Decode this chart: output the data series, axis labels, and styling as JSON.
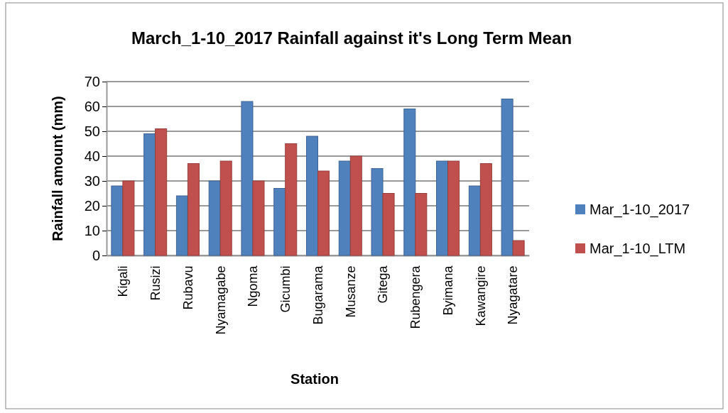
{
  "chart_data": {
    "type": "bar",
    "title": "March_1-10_2017 Rainfall against it's Long Term Mean",
    "xlabel": "Station",
    "ylabel": "Rainfall amount (mm)",
    "categories": [
      "Kigali",
      "Rusizi",
      "Rubavu",
      "Nyamagabe",
      "Ngoma",
      "Gicumbi",
      "Bugarama",
      "Musanze",
      "Gitega",
      "Rubengera",
      "Byimana",
      "Kawangire",
      "Nyagatare"
    ],
    "series": [
      {
        "name": "Mar_1-10_2017",
        "color": "#4f81bd",
        "values": [
          28,
          49,
          24,
          30,
          62,
          27,
          48,
          38,
          35,
          59,
          38,
          28,
          63
        ]
      },
      {
        "name": "Mar_1-10_LTM",
        "color": "#c0504d",
        "values": [
          30,
          51,
          37,
          38,
          30,
          45,
          34,
          40,
          25,
          25,
          38,
          37,
          6
        ]
      }
    ],
    "ylim": [
      0,
      70
    ],
    "yticks": [
      0,
      10,
      20,
      30,
      40,
      50,
      60,
      70
    ],
    "grid": "y",
    "legend": "right"
  }
}
